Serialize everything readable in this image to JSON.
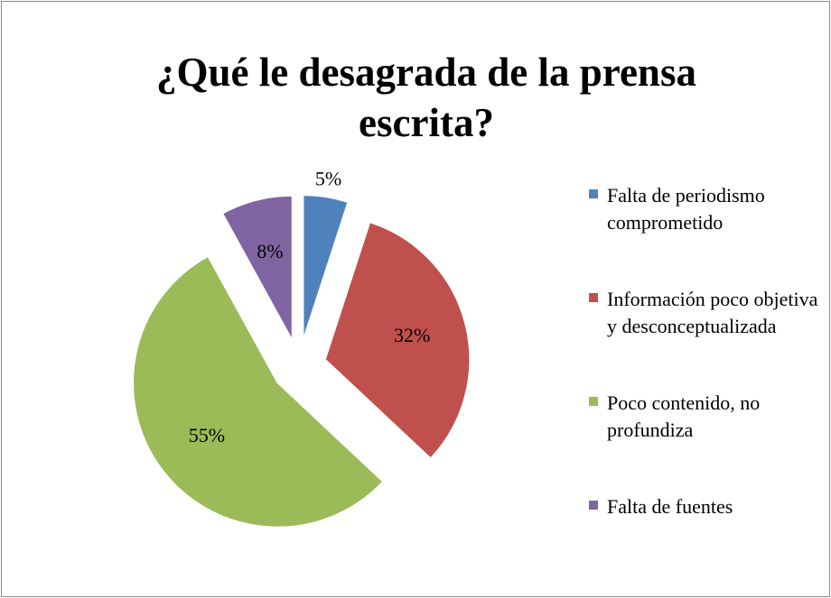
{
  "chart_data": {
    "type": "pie",
    "title": "¿Qué le desagrada de la prensa escrita?",
    "categories": [
      "Falta de periodismo comprometido",
      "Información poco objetiva y desconceptualizada",
      "Poco contenido, no profundiza",
      "Falta de fuentes"
    ],
    "values": [
      5,
      32,
      55,
      8
    ],
    "value_labels": [
      "5%",
      "32%",
      "55%",
      "8%"
    ],
    "colors": [
      "#4f81bd",
      "#c0504d",
      "#9bbb59",
      "#8064a2"
    ],
    "legend": "right",
    "exploded": true
  }
}
